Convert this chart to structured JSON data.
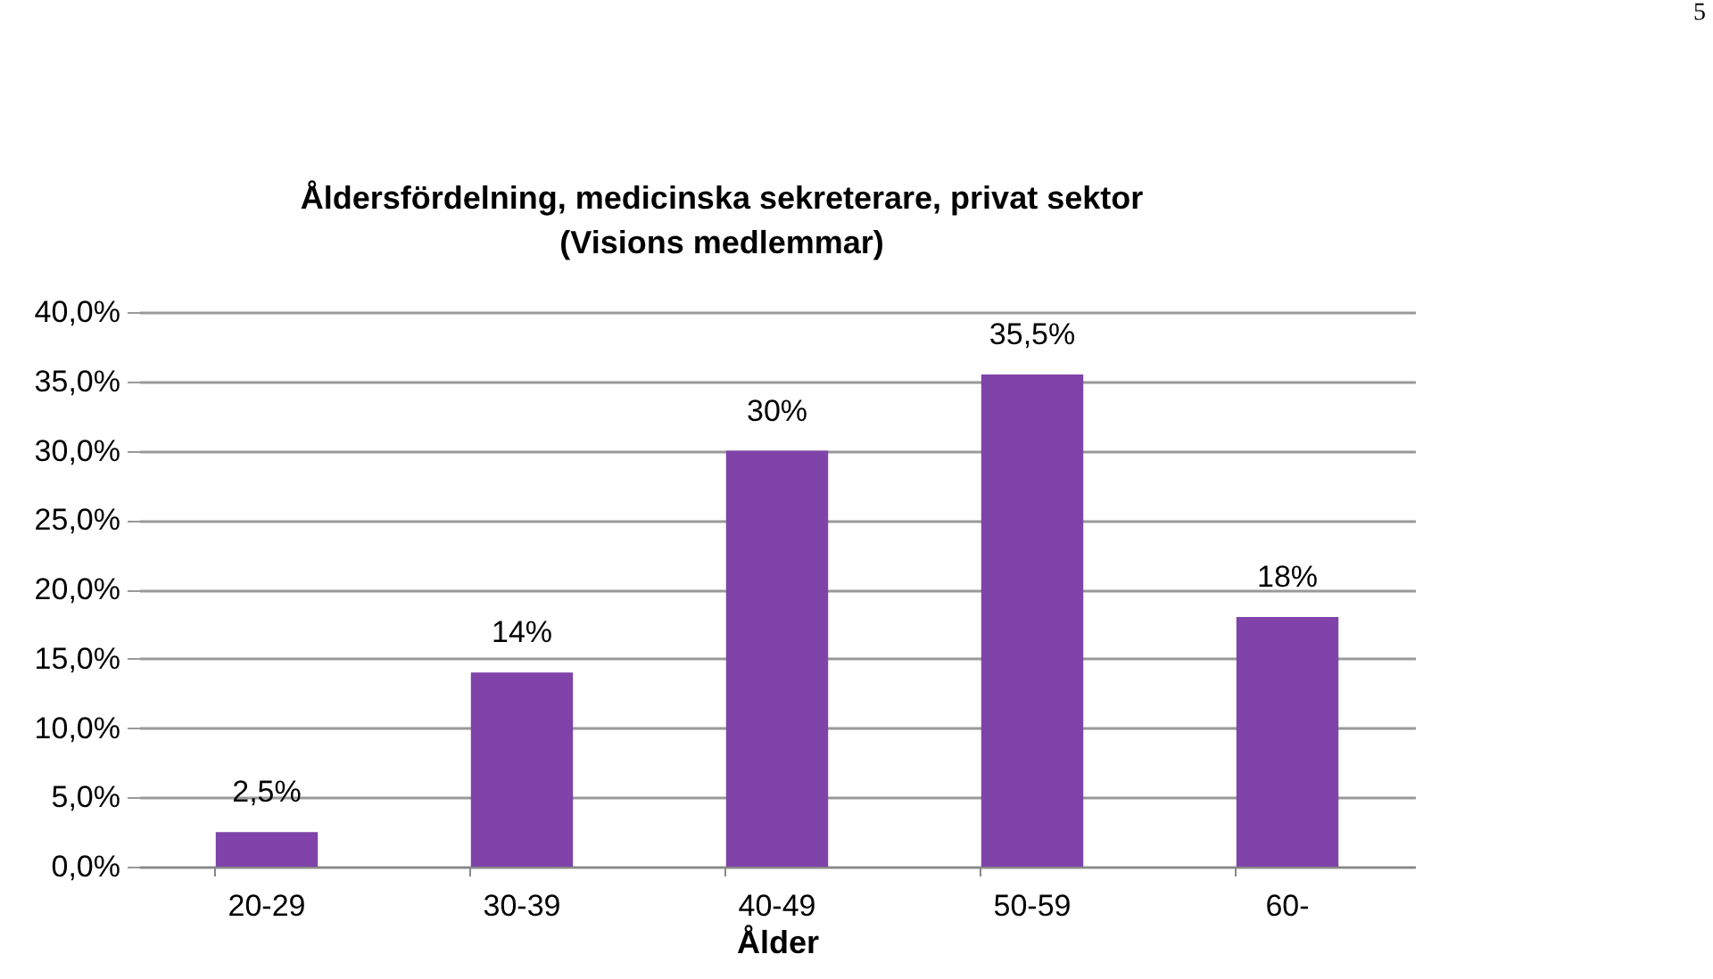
{
  "chart_data": {
    "type": "bar",
    "title": "Åldersfördelning, medicinska sekreterare, privat sektor\n(Visions medlemmar)",
    "xlabel": "Ålder",
    "categories": [
      "20-29",
      "30-39",
      "40-49",
      "50-59",
      "60-"
    ],
    "values": [
      2.5,
      14,
      30,
      35.5,
      18
    ],
    "value_labels": [
      "2,5%",
      "14%",
      "30%",
      "35,5%",
      "18%"
    ],
    "color": "#7f43a9",
    "ylim": [
      0,
      40
    ],
    "yticks": [
      {
        "value": 0,
        "label": "0,0%"
      },
      {
        "value": 5,
        "label": "5,0%"
      },
      {
        "value": 10,
        "label": "10,0%"
      },
      {
        "value": 15,
        "label": "15,0%"
      },
      {
        "value": 20,
        "label": "20,0%"
      },
      {
        "value": 25,
        "label": "25,0%"
      },
      {
        "value": 30,
        "label": "30,0%"
      },
      {
        "value": 35,
        "label": "35,0%"
      },
      {
        "value": 40,
        "label": "40,0%"
      }
    ],
    "grid": "y",
    "annotations": [
      "5"
    ]
  }
}
